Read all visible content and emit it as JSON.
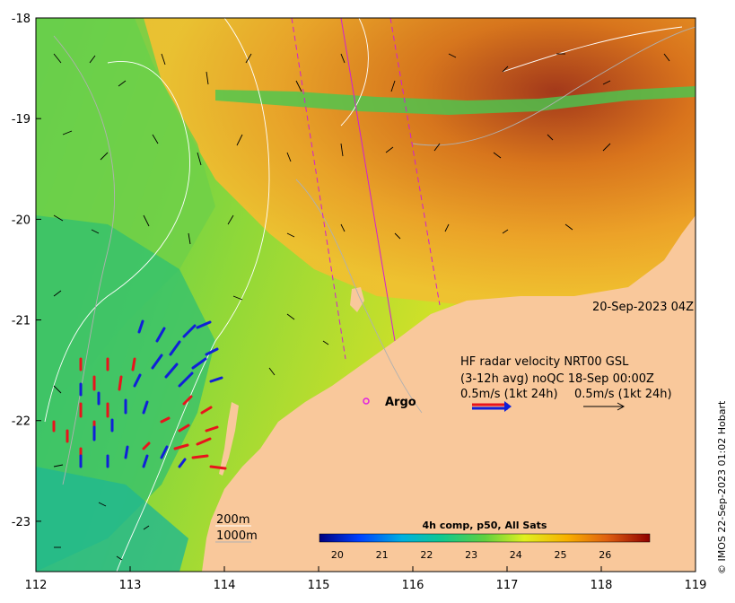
{
  "map": {
    "lon_range": [
      112,
      119
    ],
    "lat_range": [
      -23.5,
      -18
    ],
    "x_ticks": [
      "112",
      "113",
      "114",
      "115",
      "116",
      "117",
      "118",
      "119"
    ],
    "y_ticks": [
      "-18",
      "-19",
      "-20",
      "-21",
      "-22",
      "-23"
    ],
    "x_tick_values": [
      112,
      113,
      114,
      115,
      116,
      117,
      118,
      119
    ],
    "y_tick_values": [
      -18,
      -19,
      -20,
      -21,
      -22,
      -23
    ]
  },
  "annotations": {
    "timestamp": "20-Sep-2023 04Z",
    "hf_line1": "HF radar velocity  NRT00 GSL",
    "hf_line2": "(3-12h avg) noQC 18-Sep 00:00Z",
    "hf_line3_left": "0.5m/s (1kt 24h)",
    "hf_line3_right": "0.5m/s (1kt 24h)",
    "argo_label": "Argo",
    "depth_200": "200m",
    "depth_1000": "1000m",
    "credit": "© IMOS 22-Sep-2023 01:02 Hobart"
  },
  "colorbar": {
    "title": "4h comp, p50, All Sats",
    "ticks": [
      "20",
      "21",
      "22",
      "23",
      "24",
      "25",
      "26"
    ],
    "tick_values": [
      20,
      21,
      22,
      23,
      24,
      25,
      26
    ],
    "range": [
      19.6,
      27.0
    ]
  },
  "colors": {
    "land": "#f9c89b",
    "radar_red": "#e8141c",
    "radar_blue": "#1020d8",
    "argo": "#e020e0",
    "track": "#d020d0"
  }
}
